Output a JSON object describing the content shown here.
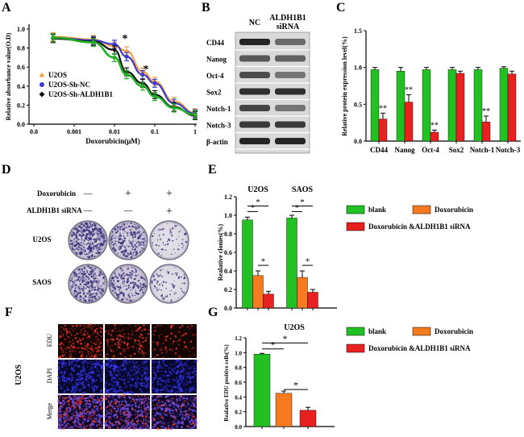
{
  "panels": {
    "A": "A",
    "B": "B",
    "C": "C",
    "D": "D",
    "E": "E",
    "F": "F",
    "G": "G"
  },
  "colors": {
    "orange": "#F5A04A",
    "blue": "#3A3AD0",
    "black": "#111111",
    "green_curve": "#22B022",
    "blank": "#22C022",
    "doxorubicin": "#F57A20",
    "combo": "#E82020"
  },
  "chart_data": [
    {
      "id": "A",
      "type": "line",
      "xscale": "log",
      "ylabel": "Relative absorbance value(O.D)",
      "xlabel": "Doxorubicin(μM)",
      "xticks": [
        "0.0",
        "0.001",
        "0.01",
        "0.1",
        "1"
      ],
      "yticks": [
        "0.0",
        "0.2",
        "0.4",
        "0.6",
        "0.8",
        "1.0"
      ],
      "ylim": [
        0,
        1.0
      ],
      "x": [
        0.0003,
        0.003,
        0.01,
        0.02,
        0.05,
        0.1,
        0.3,
        1.0
      ],
      "series": [
        {
          "name": "U2OS",
          "marker": "triangle",
          "color": "orange",
          "values": [
            0.92,
            0.89,
            0.82,
            0.77,
            0.55,
            0.45,
            0.24,
            0.12
          ]
        },
        {
          "name": "U2OS-Sh-NC",
          "marker": "circle",
          "color": "blue",
          "values": [
            0.91,
            0.88,
            0.84,
            0.71,
            0.52,
            0.43,
            0.22,
            0.11
          ]
        },
        {
          "name": "U2OS-Sh-ALDH1B1",
          "marker": "diamond",
          "color": "black",
          "values": [
            0.9,
            0.87,
            0.78,
            0.55,
            0.43,
            0.31,
            0.18,
            0.09
          ]
        }
      ],
      "fit": {
        "color": "green_curve",
        "values": [
          0.91,
          0.86,
          0.7,
          0.52,
          0.4,
          0.29,
          0.17,
          0.1
        ]
      },
      "annotations": [
        "*",
        "*"
      ],
      "legend": "left"
    },
    {
      "id": "C",
      "type": "bar",
      "ylabel": "Relative protein expression level(%)",
      "categories": [
        "CD44",
        "Nanog",
        "Oct-4",
        "Sox2",
        "Notch-1",
        "Notch-3"
      ],
      "yticks": [
        "0.0",
        "0.5",
        "1.0",
        "1.5"
      ],
      "ylim": [
        0,
        1.5
      ],
      "series": [
        {
          "color": "blank",
          "values": [
            0.97,
            0.95,
            0.97,
            0.97,
            0.97,
            0.99
          ],
          "errors": [
            0.03,
            0.05,
            0.03,
            0.03,
            0.03,
            0.02
          ]
        },
        {
          "color": "combo",
          "values": [
            0.3,
            0.53,
            0.12,
            0.92,
            0.26,
            0.91
          ],
          "errors": [
            0.08,
            0.1,
            0.03,
            0.03,
            0.08,
            0.04
          ]
        }
      ],
      "annotations": [
        "**",
        "**",
        "**",
        "**"
      ]
    },
    {
      "id": "E",
      "type": "bar",
      "ylabel": "Realative clonies(%)",
      "groups": [
        "U2OS",
        "SAOS"
      ],
      "yticks": [
        "0.0",
        "0.2",
        "0.4",
        "0.6",
        "0.8",
        "1.0",
        "1.2"
      ],
      "ylim": [
        0,
        1.2
      ],
      "series": [
        {
          "name": "blank",
          "color": "blank",
          "values": [
            0.95,
            0.97
          ],
          "errors": [
            0.03,
            0.03
          ]
        },
        {
          "name": "Doxorubicin",
          "color": "doxorubicin",
          "values": [
            0.35,
            0.33
          ],
          "errors": [
            0.05,
            0.07
          ]
        },
        {
          "name": "Doxorubicin &ALDH1B1 siRNA",
          "color": "combo",
          "values": [
            0.15,
            0.17
          ],
          "errors": [
            0.03,
            0.03
          ]
        }
      ],
      "annotations": [
        "*",
        "*",
        "*",
        "*",
        "*",
        "*"
      ]
    },
    {
      "id": "G",
      "type": "bar",
      "ylabel": "Realative EDU positive cells(%)",
      "groups": [
        "U2OS"
      ],
      "yticks": [
        "0.0",
        "0.2",
        "0.4",
        "0.6",
        "0.8",
        "1.0",
        "1.2"
      ],
      "ylim": [
        0,
        1.2
      ],
      "series": [
        {
          "name": "blank",
          "color": "blank",
          "values": [
            0.98
          ],
          "errors": [
            0.01
          ]
        },
        {
          "name": "Doxorubicin",
          "color": "doxorubicin",
          "values": [
            0.45
          ],
          "errors": [
            0.03
          ]
        },
        {
          "name": "Doxorubicin &ALDH1B1 siRNA",
          "color": "combo",
          "values": [
            0.22
          ],
          "errors": [
            0.04
          ]
        }
      ],
      "annotations": [
        "*",
        "*",
        "*"
      ]
    }
  ],
  "blot": {
    "columns": [
      "NC",
      "ALDH1B1\nsiRNA"
    ],
    "col_nc": "NC",
    "col_si_line1": "ALDH1B1",
    "col_si_line2": "siRNA",
    "rows": [
      "CD44",
      "Nanog",
      "Oct-4",
      "Sox2",
      "Notch-1",
      "Notch-3",
      "β-actin"
    ]
  },
  "colony": {
    "row_doxo": "Doxorubicin",
    "row_sirna": "ALDH1B1 siRNA",
    "doxo_marks": [
      "—",
      "+",
      "+"
    ],
    "sirna_marks": [
      "—",
      "—",
      "+"
    ],
    "cell_lines": [
      "U2OS",
      "SAOS"
    ]
  },
  "edu": {
    "cell_line": "U2OS",
    "rows": [
      "EDU",
      "DAPI",
      "Merge"
    ]
  }
}
